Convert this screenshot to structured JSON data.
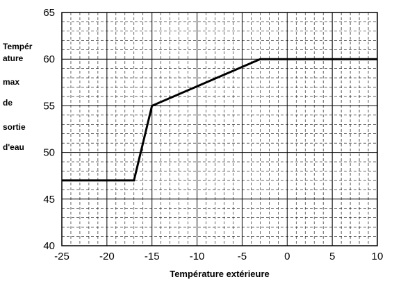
{
  "chart_data": {
    "type": "line",
    "title": "",
    "xlabel": "Température extérieure",
    "ylabel_lines": [
      "Tempér",
      "ature",
      "max",
      "de",
      "sortie",
      "d'eau"
    ],
    "xlim": [
      -25,
      10
    ],
    "ylim": [
      40,
      65
    ],
    "xticks": [
      "-25",
      "-20",
      "-15",
      "-10",
      "-5",
      "0",
      "5",
      "10"
    ],
    "yticks": [
      "40",
      "45",
      "50",
      "55",
      "60",
      "65"
    ],
    "grid": true,
    "series": [
      {
        "x": [
          -25,
          -17,
          -15,
          -3,
          10
        ],
        "y": [
          47,
          47,
          55,
          60,
          60
        ]
      }
    ]
  }
}
